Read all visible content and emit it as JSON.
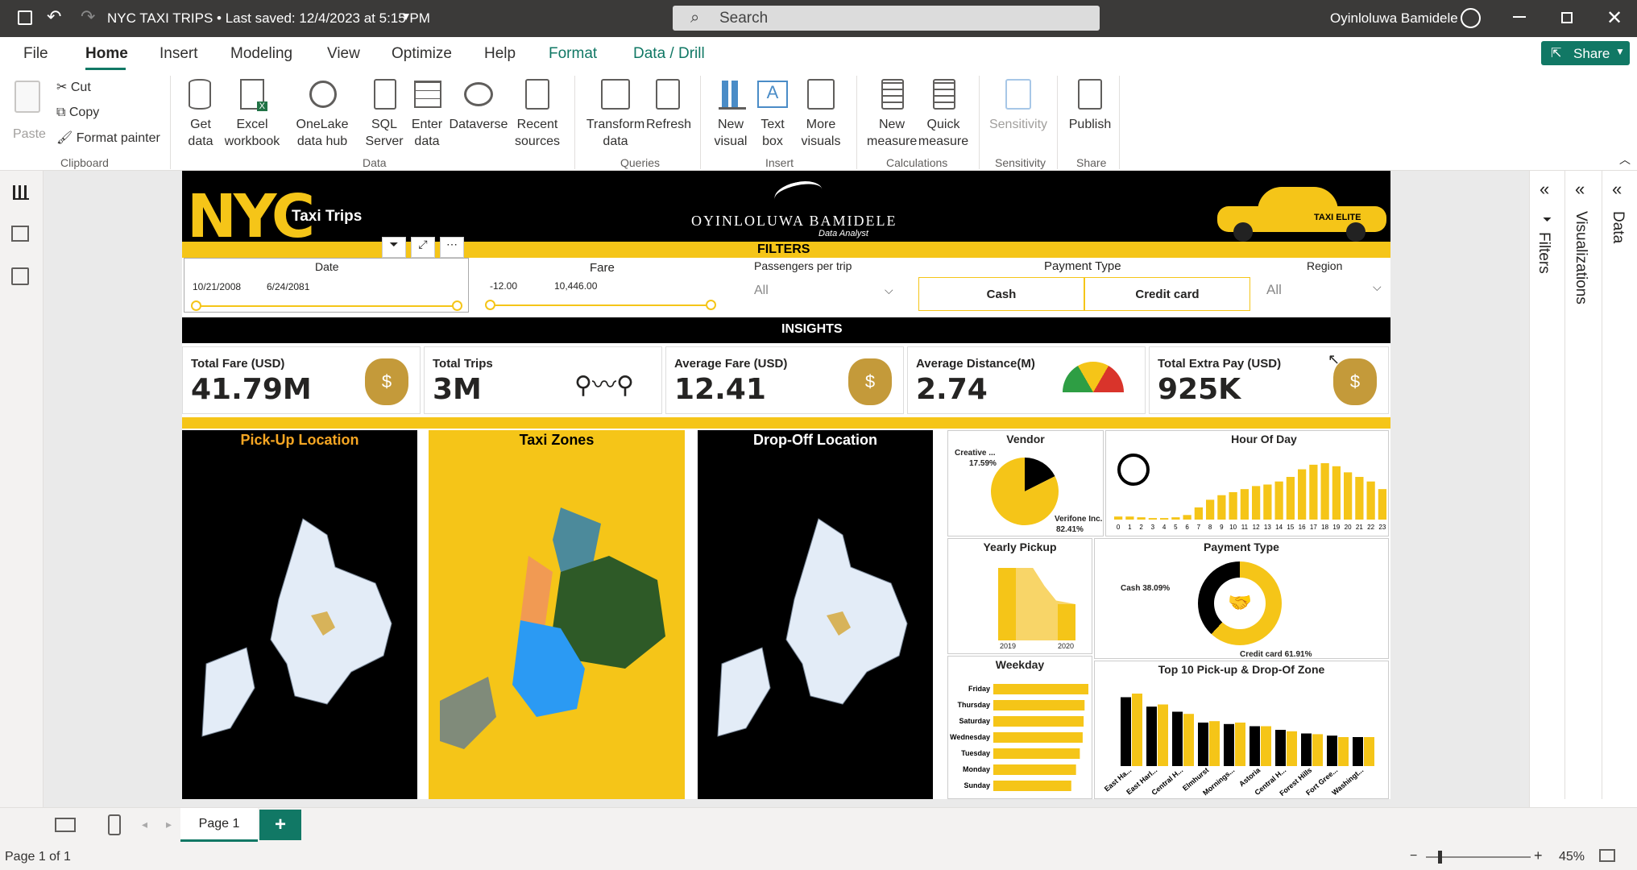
{
  "titlebar": {
    "doc_title": "NYC TAXI TRIPS • Last saved: 12/4/2023 at 5:15 PM",
    "search_placeholder": "Search",
    "user_name": "Oyinloluwa Bamidele"
  },
  "menu": {
    "items": [
      "File",
      "Home",
      "Insert",
      "Modeling",
      "View",
      "Optimize",
      "Help",
      "Format",
      "Data / Drill"
    ],
    "share": "Share"
  },
  "ribbon": {
    "clipboard": {
      "paste": "Paste",
      "cut": "Cut",
      "copy": "Copy",
      "format_painter": "Format painter",
      "label": "Clipboard"
    },
    "data": {
      "get_data": "Get data",
      "excel": "Excel workbook",
      "onelake": "OneLake data hub",
      "sql": "SQL Server",
      "enter_data": "Enter data",
      "dataverse": "Dataverse",
      "recent": "Recent sources",
      "label": "Data"
    },
    "queries": {
      "transform": "Transform data",
      "refresh": "Refresh",
      "label": "Queries"
    },
    "insert": {
      "new_visual": "New visual",
      "text_box": "Text box",
      "more_visuals": "More visuals",
      "label": "Insert"
    },
    "calculations": {
      "new_measure": "New measure",
      "quick_measure": "Quick measure",
      "label": "Calculations"
    },
    "sensitivity": {
      "sensitivity": "Sensitivity",
      "label": "Sensitivity"
    },
    "share": {
      "publish": "Publish",
      "label": "Share"
    }
  },
  "report": {
    "header": {
      "nyc": "NYC",
      "taxi_trips": "Taxi Trips",
      "brand": "OYINLOLUWA BAMIDELE",
      "brand_sub": "Data Analyst",
      "taxi_badge": "TAXI ELITE"
    },
    "filters_title": "FILTERS",
    "filters": {
      "date": {
        "label": "Date",
        "start": "10/21/2008",
        "end": "6/24/2081"
      },
      "fare": {
        "label": "Fare",
        "min": "-12.00",
        "max": "10,446.00"
      },
      "passengers": {
        "label": "Passengers per trip",
        "value": "All"
      },
      "payment": {
        "label": "Payment Type",
        "options": [
          "Cash",
          "Credit card"
        ]
      },
      "region": {
        "label": "Region",
        "value": "All"
      }
    },
    "insights_title": "INSIGHTS",
    "kpis": [
      {
        "label": "Total Fare (USD)",
        "value": "41.79M"
      },
      {
        "label": "Total Trips",
        "value": "3M"
      },
      {
        "label": "Average Fare (USD)",
        "value": "12.41"
      },
      {
        "label": "Average Distance(M)",
        "value": "2.74"
      },
      {
        "label": "Total Extra Pay (USD)",
        "value": "925K"
      }
    ],
    "maps": {
      "pickup": "Pick-Up Location",
      "zones": "Taxi Zones",
      "dropoff": "Drop-Off Location"
    },
    "vendor": {
      "title": "Vendor",
      "slices": [
        {
          "name": "Creative ...",
          "pct": "17.59%",
          "value": 17.59
        },
        {
          "name": "Verifone Inc.",
          "pct": "82.41%",
          "value": 82.41
        }
      ]
    },
    "hour": {
      "title": "Hour Of Day"
    },
    "yearly": {
      "title": "Yearly Pickup",
      "years": [
        "2019",
        "2020"
      ]
    },
    "payment_chart": {
      "title": "Payment Type",
      "cash": "Cash 38.09%",
      "credit": "Credit card 61.91%"
    },
    "weekday": {
      "title": "Weekday"
    },
    "top10": {
      "title": "Top 10 Pick-up & Drop-Of Zone"
    }
  },
  "chart_data": [
    {
      "type": "pie",
      "title": "Vendor",
      "categories": [
        "Creative ...",
        "Verifone Inc."
      ],
      "values": [
        17.59,
        82.41
      ]
    },
    {
      "type": "bar",
      "title": "Hour Of Day",
      "categories": [
        "0",
        "1",
        "2",
        "3",
        "4",
        "5",
        "6",
        "7",
        "8",
        "9",
        "10",
        "11",
        "12",
        "13",
        "14",
        "15",
        "16",
        "17",
        "18",
        "19",
        "20",
        "21",
        "22",
        "23"
      ],
      "values": [
        2,
        2,
        1.5,
        1,
        1,
        1.5,
        3,
        8,
        13,
        16,
        18,
        20,
        22,
        23,
        25,
        28,
        33,
        36,
        37,
        35,
        31,
        28,
        25,
        20
      ]
    },
    {
      "type": "pie",
      "title": "Payment Type",
      "categories": [
        "Cash",
        "Credit card"
      ],
      "values": [
        38.09,
        61.91
      ]
    },
    {
      "type": "bar",
      "title": "Weekday",
      "categories": [
        "Friday",
        "Thursday",
        "Saturday",
        "Wednesday",
        "Tuesday",
        "Monday",
        "Sunday"
      ],
      "values": [
        100,
        96,
        95,
        94,
        91,
        87,
        82
      ]
    },
    {
      "type": "bar",
      "title": "Top 10 Pick-up & Drop-Of Zone",
      "categories": [
        "East Ha...",
        "East Harl...",
        "Central H...",
        "Elmhurst",
        "Mornings...",
        "Astoria",
        "Central H...",
        "Forest Hills",
        "Fort Gree...",
        "Washingt..."
      ],
      "series": [
        {
          "values": [
            95,
            82,
            75,
            60,
            58,
            55,
            50,
            45,
            42,
            40
          ]
        },
        {
          "values": [
            100,
            85,
            72,
            62,
            60,
            55,
            48,
            44,
            40,
            40
          ]
        }
      ]
    }
  ],
  "bottom": {
    "page": "Page 1",
    "add": "+"
  },
  "status": {
    "page_of": "Page 1 of 1",
    "zoom": "45%"
  },
  "right_panes": {
    "filters": "Filters",
    "visualizations": "Visualizations",
    "data": "Data"
  },
  "colors": {
    "accent": "#117865",
    "yellow": "#f5c518",
    "black": "#000000"
  }
}
